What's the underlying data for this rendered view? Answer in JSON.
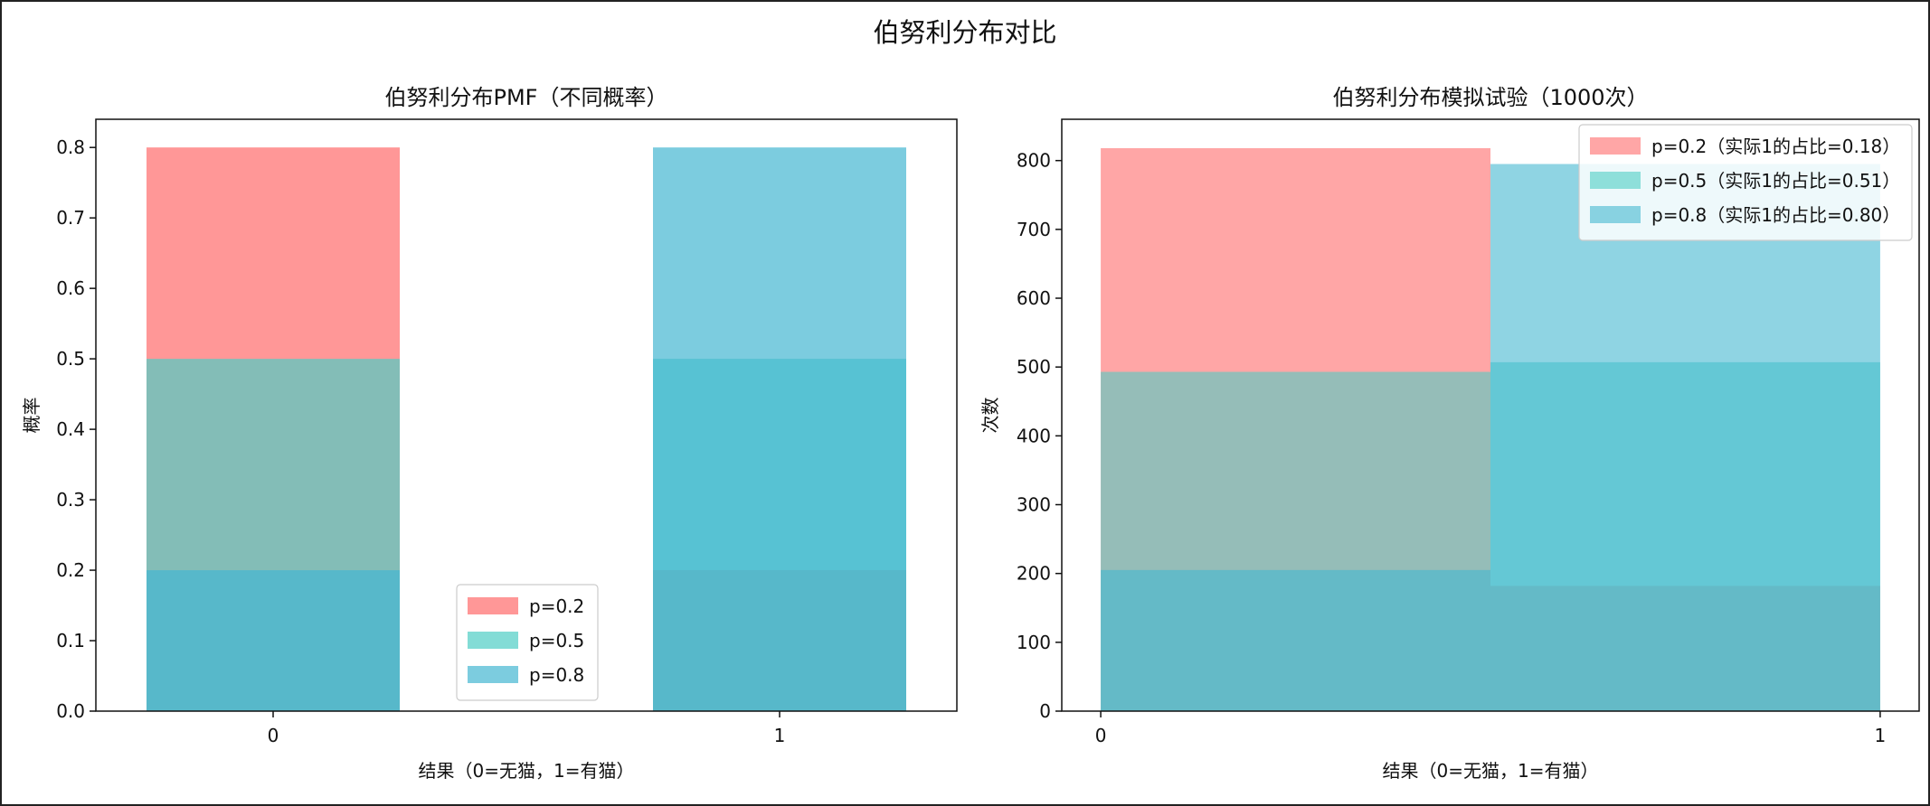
{
  "figure": {
    "suptitle": "伯努利分布对比"
  },
  "chart_data": [
    {
      "type": "bar",
      "title": "伯努利分布PMF（不同概率）",
      "xlabel": "结果（0=无猫，1=有猫）",
      "ylabel": "概率",
      "categories": [
        "0",
        "1"
      ],
      "ylim": [
        0,
        0.84
      ],
      "yticks": [
        "0.0",
        "0.1",
        "0.2",
        "0.3",
        "0.4",
        "0.5",
        "0.6",
        "0.7",
        "0.8"
      ],
      "legend_position": "lower center",
      "series": [
        {
          "name": "p=0.2",
          "values": [
            0.8,
            0.2
          ],
          "color": "#ff6b6b"
        },
        {
          "name": "p=0.5",
          "values": [
            0.5,
            0.5
          ],
          "color": "#4ecdc4"
        },
        {
          "name": "p=0.8",
          "values": [
            0.2,
            0.8
          ],
          "color": "#45b7d1"
        }
      ]
    },
    {
      "type": "histogram",
      "title": "伯努利分布模拟试验（1000次）",
      "xlabel": "结果（0=无猫，1=有猫）",
      "ylabel": "次数",
      "xticks": [
        "0",
        "1"
      ],
      "ylim": [
        0,
        860
      ],
      "yticks": [
        "0",
        "100",
        "200",
        "300",
        "400",
        "500",
        "600",
        "700",
        "800"
      ],
      "legend_position": "upper right",
      "series": [
        {
          "name": "p=0.2（实际1的占比=0.18）",
          "values": [
            818,
            182
          ],
          "color": "#ff6b6b"
        },
        {
          "name": "p=0.5（实际1的占比=0.51）",
          "values": [
            493,
            507
          ],
          "color": "#4ecdc4"
        },
        {
          "name": "p=0.8（实际1的占比=0.80）",
          "values": [
            205,
            795
          ],
          "color": "#45b7d1"
        }
      ]
    }
  ]
}
